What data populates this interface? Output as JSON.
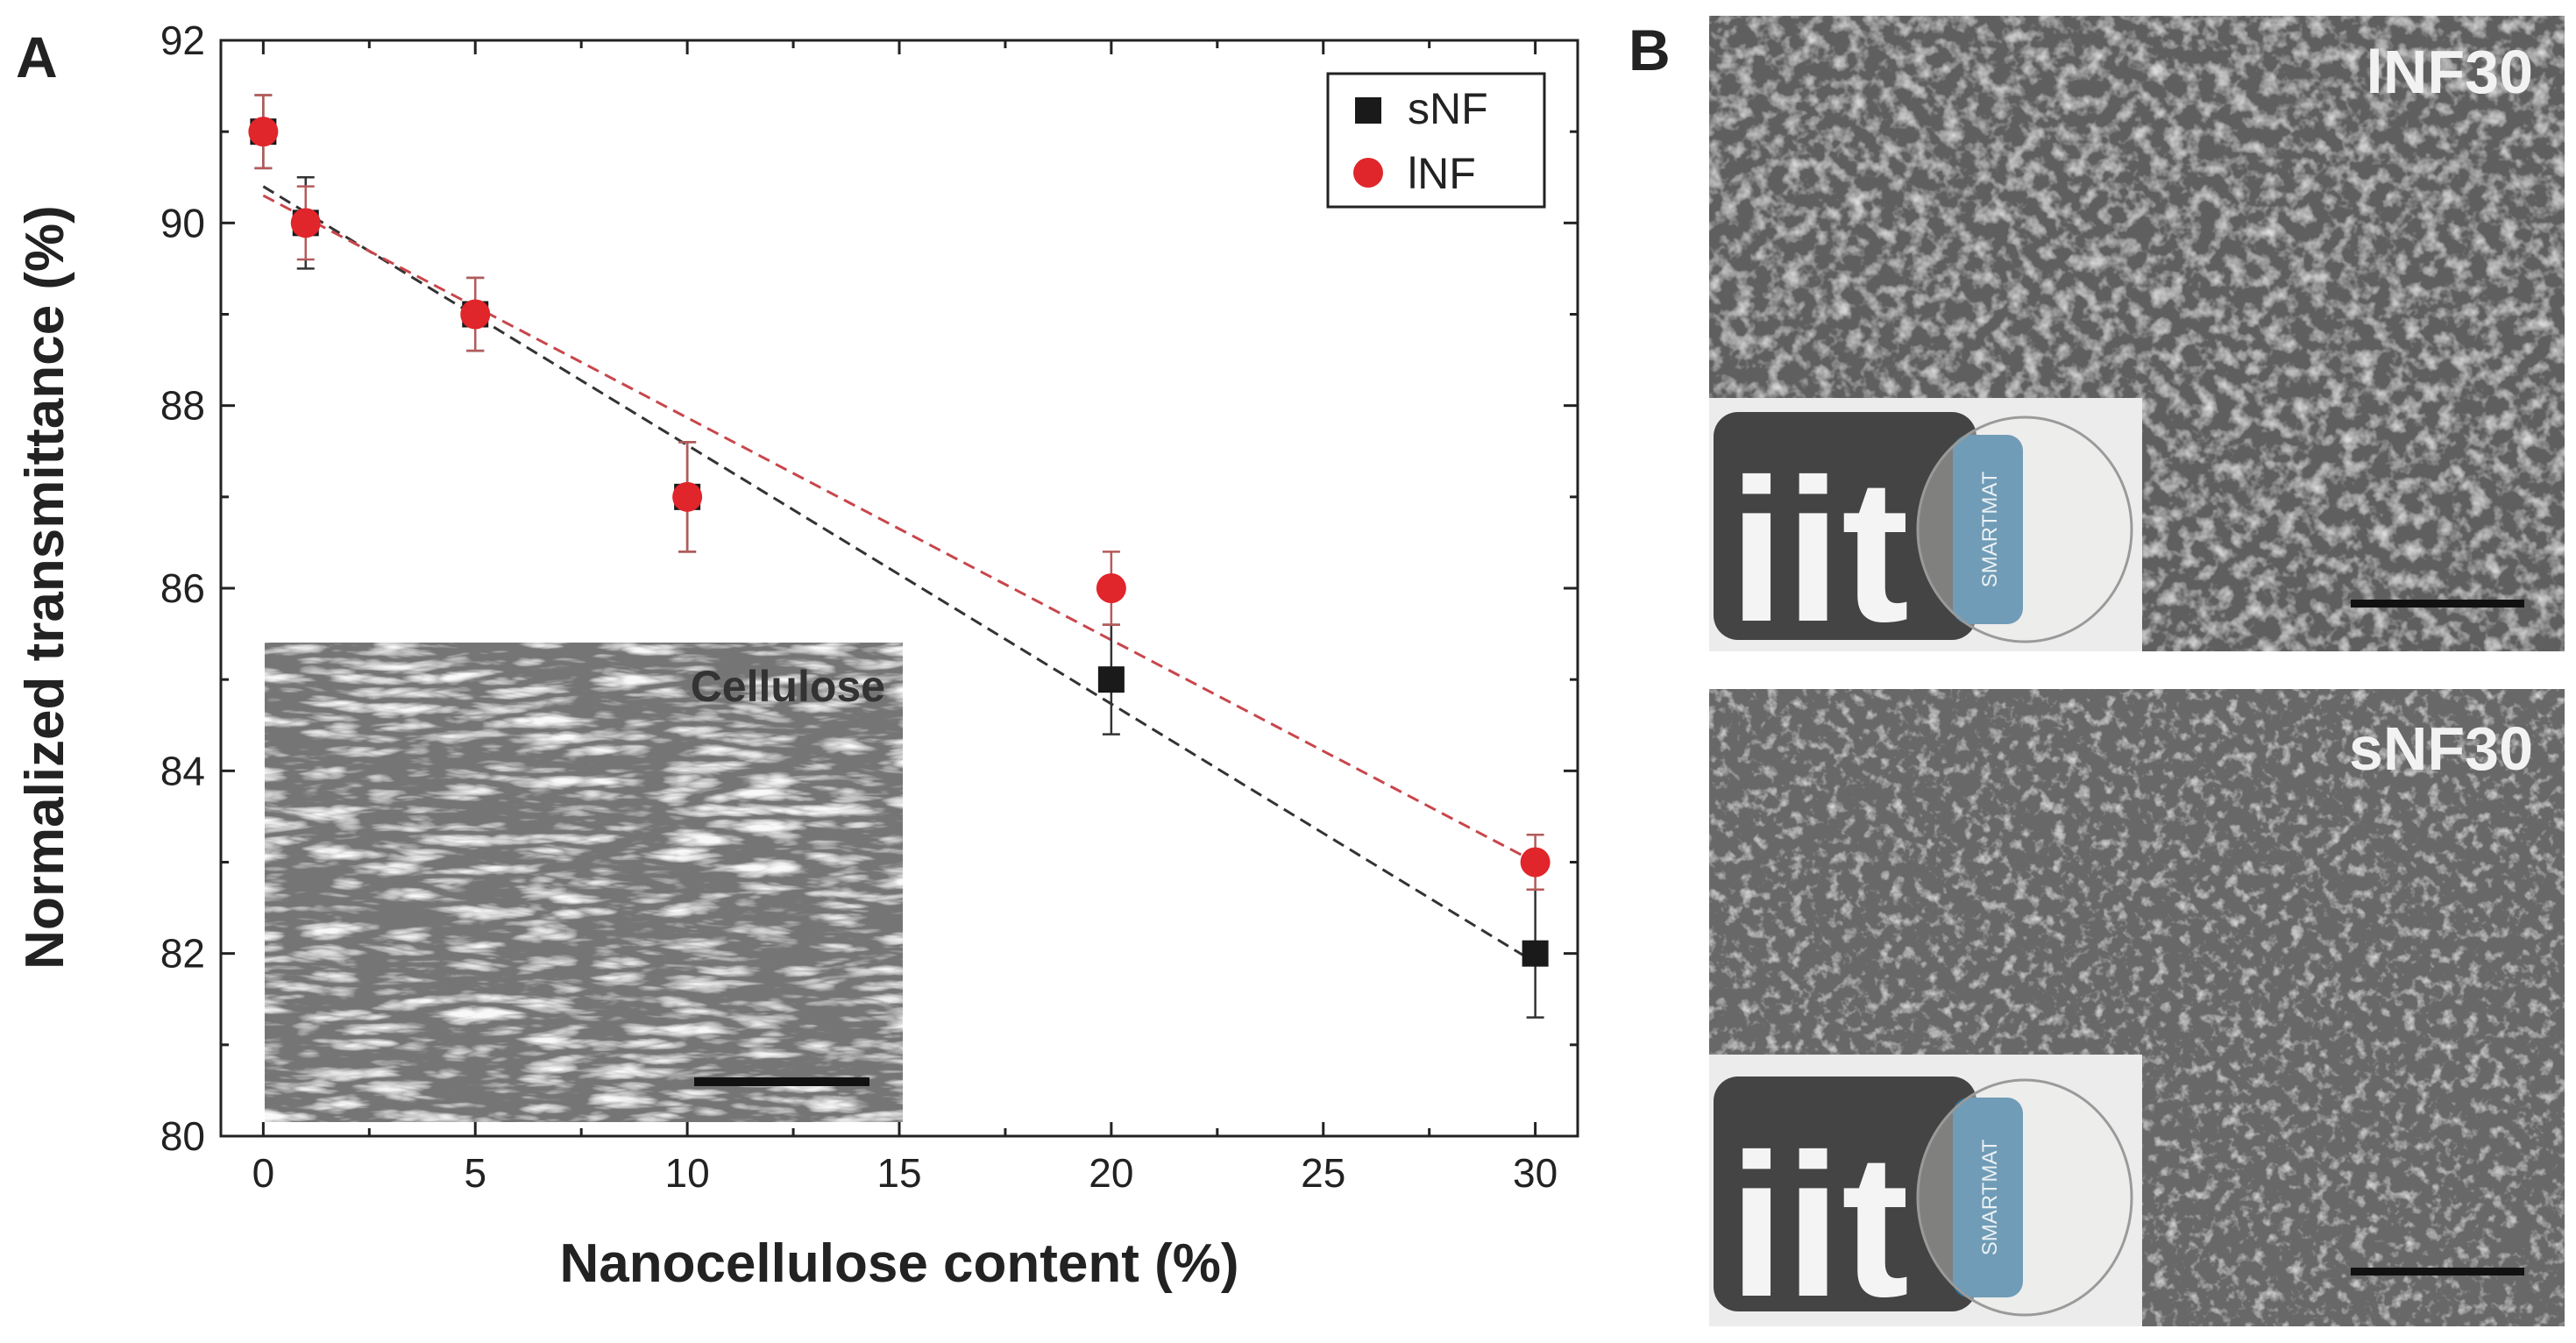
{
  "panels": {
    "a_label": "A",
    "b_label": "B"
  },
  "chart_data": {
    "type": "scatter",
    "xlabel": "Nanocellulose content (%)",
    "ylabel": "Normalized transmittance (%)",
    "xlim": [
      -1,
      31
    ],
    "ylim": [
      80,
      92
    ],
    "xticks": [
      0,
      5,
      10,
      15,
      20,
      25,
      30
    ],
    "yticks": [
      80,
      82,
      84,
      86,
      88,
      90,
      92
    ],
    "grid": false,
    "legend_position": "top-right",
    "series": [
      {
        "name": "sNF",
        "marker": "square",
        "color": "#1a1a1a",
        "x": [
          0,
          1,
          5,
          10,
          20,
          30
        ],
        "y": [
          91,
          90,
          89,
          87,
          85,
          82
        ],
        "err": [
          0.4,
          0.5,
          0.4,
          0.6,
          0.6,
          0.7
        ],
        "fit": {
          "x": [
            0,
            30
          ],
          "y": [
            90.4,
            81.9
          ],
          "color": "#333333"
        }
      },
      {
        "name": "lNF",
        "marker": "circle",
        "color": "#e0252b",
        "x": [
          0,
          1,
          5,
          10,
          20,
          30
        ],
        "y": [
          91,
          90,
          89,
          87,
          86,
          83
        ],
        "err": [
          0.4,
          0.4,
          0.4,
          0.6,
          0.4,
          0.3
        ],
        "fit": {
          "x": [
            0,
            30
          ],
          "y": [
            90.3,
            83.0
          ],
          "color": "#c8464b"
        }
      }
    ]
  },
  "inset": {
    "label": "Cellulose"
  },
  "micrographs": [
    {
      "label": "lNF30",
      "logo_text": "iit",
      "badge_text": "SMARTMAT"
    },
    {
      "label": "sNF30",
      "logo_text": "iit",
      "badge_text": "SMARTMAT"
    }
  ],
  "colors": {
    "sem_base": "#6e6e6e",
    "logo_bg": "#444444",
    "badge": "#2b6f9a",
    "axis": "#222222"
  }
}
